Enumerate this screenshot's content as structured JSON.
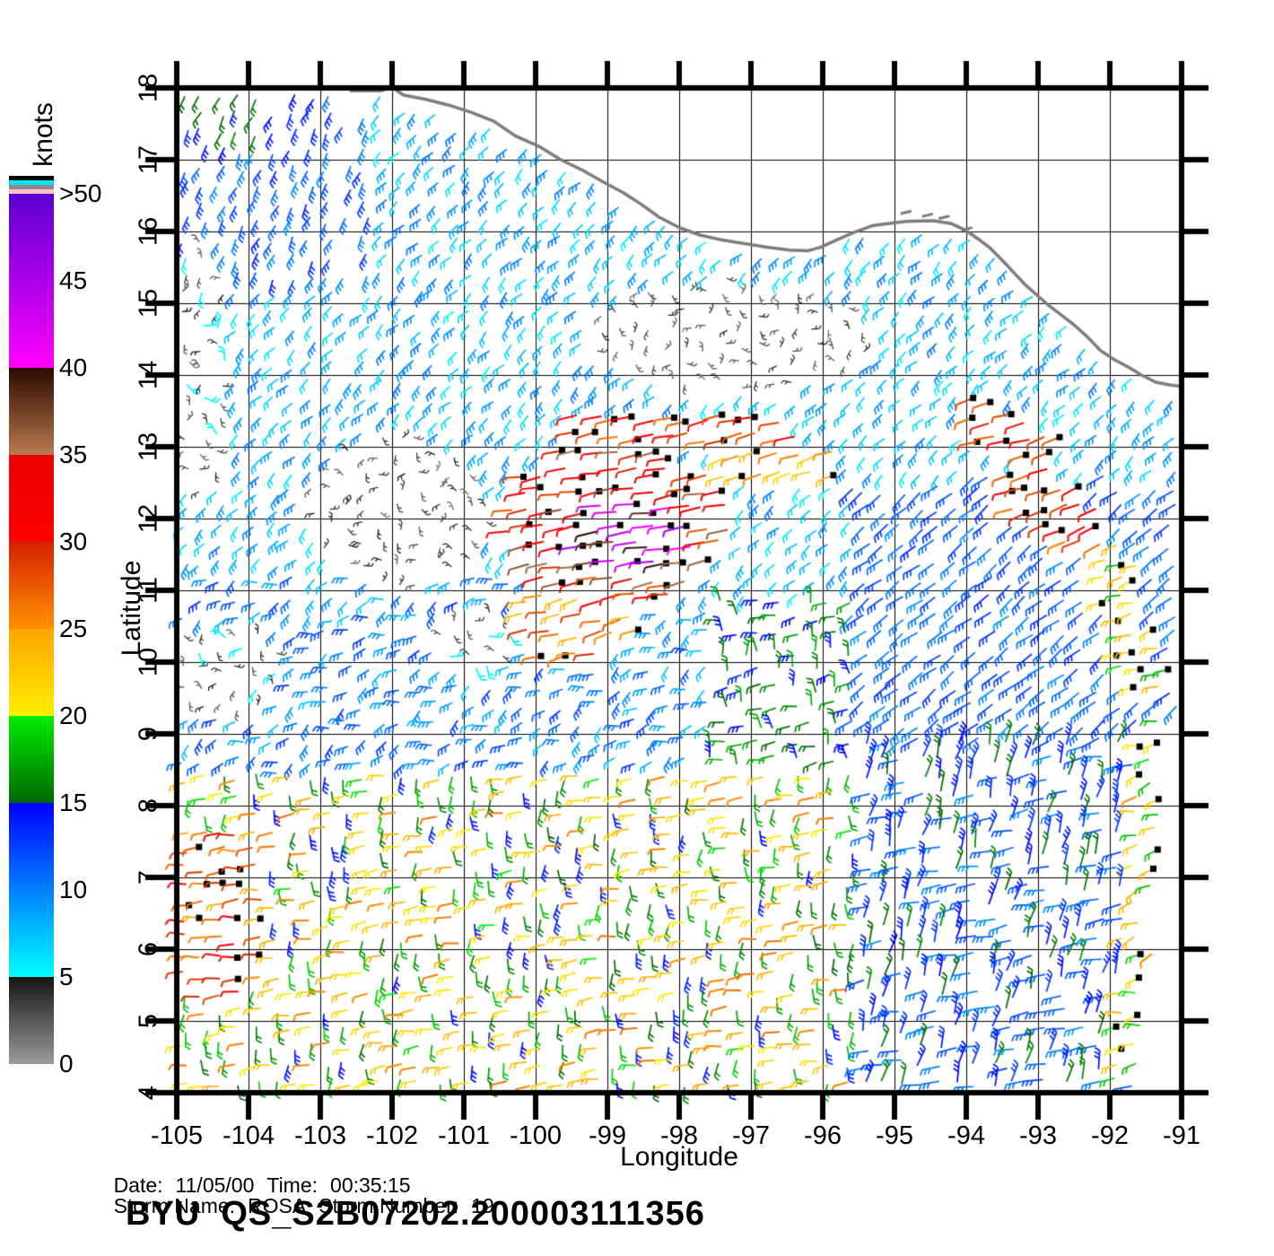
{
  "chart_data": {
    "type": "scatter",
    "subtype": "wind-barb-vector-field",
    "title": "BYU  QS_S2B07202.200003111356",
    "xlabel": "Longitude",
    "ylabel": "Latitude",
    "xlim": [
      -105,
      -91
    ],
    "ylim": [
      4,
      18
    ],
    "grid": true,
    "x_ticks": [
      "-105",
      "-104",
      "-103",
      "-102",
      "-101",
      "-100",
      "-99",
      "-98",
      "-97",
      "-96",
      "-95",
      "-94",
      "-93",
      "-92",
      "-91"
    ],
    "y_ticks": [
      "4",
      "5",
      "6",
      "7",
      "8",
      "9",
      "10",
      "11",
      "12",
      "13",
      "14",
      "15",
      "16",
      "17",
      "18"
    ],
    "coastline_color": "#7d7d7d",
    "colorbar": {
      "title": "knots",
      "labels": [
        "0",
        "5",
        "10",
        "15",
        "20",
        "25",
        "30",
        "35",
        "40",
        "45",
        ">50"
      ],
      "label_values": [
        0,
        5,
        10,
        15,
        20,
        25,
        30,
        35,
        40,
        45,
        50
      ],
      "segments": [
        {
          "from": 0,
          "to": 5,
          "c0": "#9a9a9a",
          "c1": "#151515"
        },
        {
          "from": 5,
          "to": 15,
          "c0": "#00ffff",
          "c1": "#0000ff"
        },
        {
          "from": 15,
          "to": 20,
          "c0": "#006600",
          "c1": "#00ee00"
        },
        {
          "from": 20,
          "to": 25,
          "c0": "#ffee00",
          "c1": "#ffa500"
        },
        {
          "from": 25,
          "to": 30,
          "c0": "#ff9100",
          "c1": "#d42100"
        },
        {
          "from": 30,
          "to": 35,
          "c0": "#ff0000",
          "c1": "#e80000"
        },
        {
          "from": 35,
          "to": 40,
          "c0": "#b97a4e",
          "c1": "#2a0a00"
        },
        {
          "from": 40,
          "to": 50,
          "c0": "#ff00ff",
          "c1": "#5a00d0"
        }
      ],
      "top_stripes": [
        "#000000",
        "#00e5ff",
        "#8a8a8a",
        "#ffc0cb"
      ]
    },
    "coastline": [
      [
        -102.59,
        17.96
      ],
      [
        -102.15,
        17.96
      ],
      [
        -102.0,
        18.01
      ],
      [
        -101.84,
        17.9
      ],
      [
        -101.53,
        17.84
      ],
      [
        -101.21,
        17.76
      ],
      [
        -100.9,
        17.66
      ],
      [
        -100.59,
        17.54
      ],
      [
        -100.28,
        17.33
      ],
      [
        -99.96,
        17.19
      ],
      [
        -99.65,
        17.0
      ],
      [
        -99.34,
        16.85
      ],
      [
        -99.06,
        16.69
      ],
      [
        -98.78,
        16.54
      ],
      [
        -98.53,
        16.38
      ],
      [
        -98.28,
        16.2
      ],
      [
        -97.99,
        16.05
      ],
      [
        -97.71,
        15.95
      ],
      [
        -97.4,
        15.88
      ],
      [
        -97.09,
        15.83
      ],
      [
        -96.78,
        15.78
      ],
      [
        -96.46,
        15.74
      ],
      [
        -96.21,
        15.73
      ],
      [
        -96.03,
        15.78
      ],
      [
        -95.81,
        15.88
      ],
      [
        -95.56,
        15.99
      ],
      [
        -95.31,
        16.08
      ],
      [
        -95.09,
        16.11
      ],
      [
        -94.84,
        16.14
      ],
      [
        -94.46,
        16.15
      ],
      [
        -94.21,
        16.11
      ],
      [
        -94.0,
        16.01
      ],
      [
        -93.84,
        15.9
      ],
      [
        -93.68,
        15.78
      ],
      [
        -93.5,
        15.6
      ],
      [
        -93.34,
        15.43
      ],
      [
        -93.18,
        15.26
      ],
      [
        -93.0,
        15.1
      ],
      [
        -92.84,
        14.96
      ],
      [
        -92.68,
        14.84
      ],
      [
        -92.5,
        14.7
      ],
      [
        -92.31,
        14.53
      ],
      [
        -92.13,
        14.34
      ],
      [
        -91.93,
        14.21
      ],
      [
        -91.74,
        14.11
      ],
      [
        -91.56,
        14.0
      ],
      [
        -91.36,
        13.9
      ],
      [
        -91.15,
        13.86
      ],
      [
        -91.0,
        13.84
      ]
    ],
    "islands": [
      [
        -94.84,
        16.26
      ],
      [
        -94.54,
        16.22
      ],
      [
        -94.31,
        16.19
      ],
      [
        -93.99,
        16.03
      ]
    ],
    "swath_edge": {
      "lat_max": 9.35,
      "lon_at_lat4": -91.55,
      "dlon_dlat": 0.075
    },
    "wind_field": {
      "seed": 11,
      "grid_step_deg": 0.25,
      "dot_min_speed": 17,
      "regions": [
        {
          "name": "calm-tehuantepec",
          "type": "ellipse",
          "c": [
            -97.3,
            14.55
          ],
          "r": [
            1.95,
            0.8
          ],
          "speed": [
            1.5,
            4.5
          ],
          "dir": [
            200,
            170
          ]
        },
        {
          "name": "calm-west",
          "type": "ellipse",
          "c": [
            -101.9,
            12.1
          ],
          "r": [
            1.3,
            1.05
          ],
          "speed": [
            1.5,
            5
          ],
          "dir": [
            200,
            170
          ]
        },
        {
          "name": "calm-left-edge",
          "type": "ellipse",
          "c": [
            -104.75,
            14.1
          ],
          "r": [
            0.55,
            1.8
          ],
          "speed": [
            2,
            5.5
          ],
          "dir": [
            210,
            170
          ]
        },
        {
          "name": "calm-sw",
          "type": "ellipse",
          "c": [
            -104.35,
            9.9
          ],
          "r": [
            0.9,
            0.6
          ],
          "speed": [
            2,
            5.5
          ],
          "dir": [
            210,
            170
          ]
        },
        {
          "name": "calm-mid",
          "type": "ellipse",
          "c": [
            -100.9,
            10.35
          ],
          "r": [
            0.6,
            0.45
          ],
          "speed": [
            3,
            6
          ],
          "dir": [
            210,
            170
          ]
        },
        {
          "name": "storm-core",
          "type": "ellipse",
          "c": [
            -98.6,
            11.75
          ],
          "r": [
            0.8,
            0.55
          ],
          "speed": [
            37,
            46
          ],
          "dir": [
            189,
            7
          ],
          "dots": 0.5,
          "len": 1.3
        },
        {
          "name": "storm-main",
          "type": "ellipse",
          "c": [
            -98.85,
            11.95
          ],
          "r": [
            1.6,
            1.15
          ],
          "speed": [
            27,
            37
          ],
          "dir": [
            190,
            8
          ],
          "dots": 0.45,
          "len": 1.25
        },
        {
          "name": "storm-west-tail",
          "type": "ellipse",
          "c": [
            -99.5,
            10.5
          ],
          "r": [
            0.95,
            0.5
          ],
          "speed": [
            23,
            30
          ],
          "dir": [
            193,
            10
          ],
          "dots": 0.3,
          "len": 1.2
        },
        {
          "name": "band-north",
          "type": "rect",
          "b": [
            -99.6,
            -96.35,
            13.0,
            13.55
          ],
          "speed": [
            26,
            33
          ],
          "dir": [
            192,
            7
          ],
          "dots": 0.5,
          "len": 1.25
        },
        {
          "name": "band-ne",
          "type": "rect",
          "b": [
            -97.45,
            -95.8,
            12.55,
            12.95
          ],
          "speed": [
            21,
            27
          ],
          "dir": [
            196,
            8
          ],
          "dots": 0.3,
          "len": 1.2
        },
        {
          "name": "arc-east-1",
          "type": "corridor",
          "p0": [
            -94.05,
            13.5
          ],
          "p1": [
            -92.75,
            12.95
          ],
          "hw": 0.33,
          "speed": [
            26,
            32
          ],
          "dir": [
            197,
            8
          ],
          "dots": 0.5,
          "len": 1.2
        },
        {
          "name": "arc-east-2",
          "type": "corridor",
          "p0": [
            -93.45,
            12.6
          ],
          "p1": [
            -92.0,
            11.75
          ],
          "hw": 0.4,
          "speed": [
            25,
            33
          ],
          "dir": [
            200,
            10
          ],
          "dots": 0.5,
          "len": 1.2
        },
        {
          "name": "arc-east-3",
          "type": "corridor",
          "p0": [
            -92.05,
            11.8
          ],
          "p1": [
            -91.42,
            9.5
          ],
          "hw": 0.33,
          "speed": [
            17,
            24
          ],
          "dir": [
            195,
            14
          ],
          "dots": 0.45
        },
        {
          "name": "sw-cluster",
          "type": "ellipse",
          "c": [
            -104.45,
            6.5
          ],
          "r": [
            0.75,
            1.3
          ],
          "speed": [
            24,
            31
          ],
          "dir": [
            184,
            12
          ],
          "dots": 0.4
        },
        {
          "name": "nw-green",
          "type": "rect",
          "b": [
            -105,
            -103.05,
            17.15,
            18
          ],
          "speed": [
            13,
            16.5
          ],
          "dir": [
            243,
            10
          ]
        },
        {
          "name": "nw-blue",
          "type": "rect",
          "b": [
            -105,
            -102.3,
            15.3,
            18
          ],
          "speed": [
            9,
            14
          ],
          "dir": [
            243,
            12
          ]
        },
        {
          "name": "edge-band-se",
          "type": "corridor",
          "p0": [
            -91.75,
            4.1
          ],
          "p1": [
            -91.3,
            9.3
          ],
          "hw": 0.28,
          "speed": [
            18,
            26
          ],
          "dir": [
            195,
            25
          ],
          "dots": 0.28
        },
        {
          "name": "south-trades",
          "type": "rect",
          "b": [
            -105,
            -95.55,
            4,
            8.45
          ],
          "cross": {
            "pA": 0.52,
            "dirA": [
              187,
              10
            ],
            "speedA": [
              19.5,
              26.5
            ],
            "dirB": [
              268,
              18
            ],
            "speedB": [
              13.5,
              19
            ]
          }
        },
        {
          "name": "se-blue-upper",
          "type": "rect",
          "b": [
            -95.6,
            -91,
            8.9,
            12.6
          ],
          "speed": [
            9,
            13.5
          ],
          "dir": [
            218,
            10
          ],
          "len": 1.4
        },
        {
          "name": "se-blue-lower",
          "type": "rect",
          "b": [
            -95.6,
            -91,
            4,
            8.9
          ],
          "len": 1.4,
          "cross": {
            "pA": 0.45,
            "dirA": [
              190,
              10
            ],
            "speedA": [
              9,
              12.5
            ],
            "dirB": [
              75,
              12
            ],
            "speedB": [
              12.5,
              16.5
            ]
          }
        },
        {
          "name": "mid-green",
          "type": "rect",
          "b": [
            -97.6,
            -95.55,
            8.45,
            10.9
          ],
          "cross": {
            "pA": 0.5,
            "dirA": [
              190,
              15
            ],
            "speedA": [
              13,
              18
            ],
            "dirB": [
              95,
              20
            ],
            "speedB": [
              14,
              18
            ]
          }
        },
        {
          "name": "mid-west",
          "type": "rect",
          "b": [
            -105,
            -97.6,
            8.45,
            11.2
          ],
          "speed": [
            7,
            13
          ],
          "dir": [
            205,
            35
          ]
        },
        {
          "name": "north-default",
          "type": "all",
          "speed": [
            5.5,
            10.5
          ],
          "dir": [
            224,
            16
          ]
        }
      ]
    }
  },
  "annotations": {
    "date_label": "Date:",
    "date_value": "11/05/00",
    "time_label": "Time:",
    "time_value": "00:35:15",
    "storm_name_label": "Storm Name:",
    "storm_name_value": "ROSA",
    "storm_number_label": "Storm Number:",
    "storm_number_value": "19",
    "title": "BYU  QS_S2B07202.200003111356"
  }
}
